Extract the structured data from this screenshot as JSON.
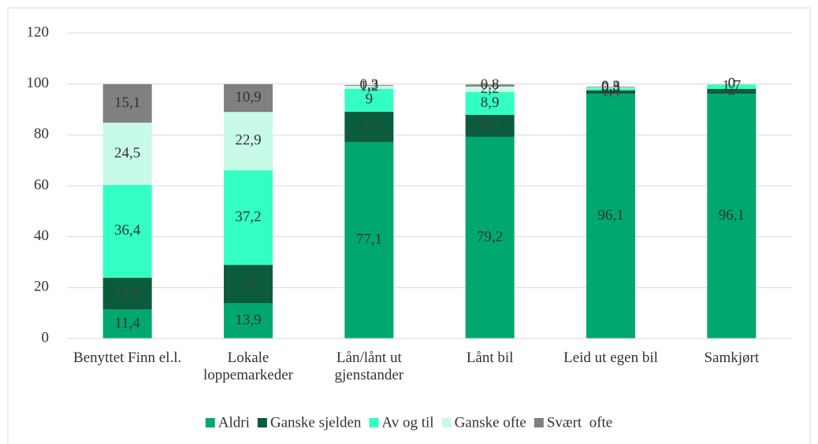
{
  "chart_data": {
    "type": "stacked_bar",
    "categories": [
      "Benyttet Finn el.l.",
      "Lokale loppemarkeder",
      "Lån/lånt ut gjenstander",
      "Lånt bil",
      "Leid ut egen bil",
      "Samkjørt"
    ],
    "series": [
      {
        "name": "Aldri",
        "color": "#00a86f",
        "values": [
          11.4,
          13.9,
          77.1,
          79.2,
          96.1,
          96.1
        ],
        "value_labels": [
          "11,4",
          "13,9",
          "77,1",
          "79,2",
          "96,1",
          "96,1"
        ]
      },
      {
        "name": "Ganske sjelden",
        "color": "#0a5c3d",
        "values": [
          12.5,
          15,
          12,
          8.7,
          1.4,
          2
        ],
        "value_labels": [
          "12,5",
          "15",
          "12",
          "8,7",
          "1,4",
          "2"
        ]
      },
      {
        "name": "Av og til",
        "color": "#33ffc2",
        "values": [
          36.4,
          37.2,
          9,
          8.9,
          0.8,
          1.7
        ],
        "value_labels": [
          "36,4",
          "37,2",
          "9",
          "8,9",
          "0,8",
          "1,7"
        ]
      },
      {
        "name": "Ganske ofte",
        "color": "#c8fbe7",
        "values": [
          24.5,
          22.9,
          1.2,
          2.2,
          0.3,
          0
        ],
        "value_labels": [
          "24,5",
          "22,9",
          "1,2",
          "2,2",
          "0,3",
          "0"
        ]
      },
      {
        "name": "Svært  ofte",
        "color": "#808080",
        "values": [
          15.1,
          10.9,
          0.3,
          0.8,
          0.3,
          0
        ],
        "value_labels": [
          "15,1",
          "10,9",
          "0,3",
          "0,8",
          "0,3",
          "0"
        ]
      }
    ],
    "ylim": [
      0,
      120
    ],
    "yticks": [
      0,
      20,
      40,
      60,
      80,
      100,
      120
    ],
    "grid": true,
    "legend": "bottom"
  }
}
